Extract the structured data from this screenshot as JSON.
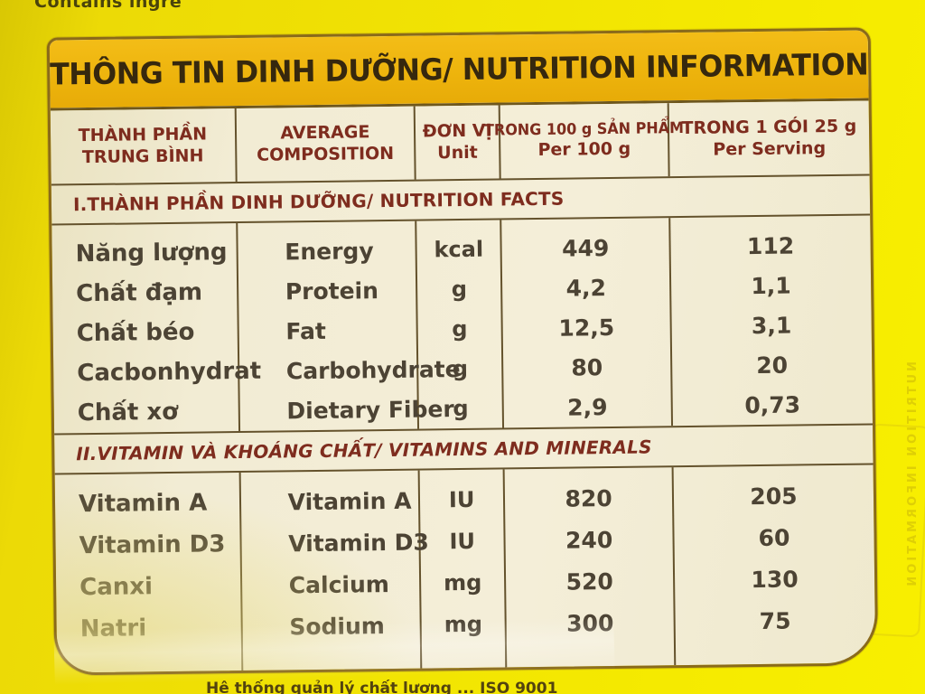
{
  "page": {
    "top_cut_text": "Contains ingre",
    "bottom_cut_text": "Hệ thống quản lý chất lượng ... ISO 9001",
    "ghost_text": "NUTRITION INFORMATION"
  },
  "colors": {
    "package_yellow": "#f2e403",
    "title_band_gold": "#eeb30e",
    "panel_cream": "#f2ecd4",
    "heading_maroon": "#7e2c1e",
    "data_text_brown": "#4c4334",
    "line_brown": "#64522c",
    "title_text_brown": "#36280e"
  },
  "table": {
    "title": "THÔNG TIN DINH DƯỠNG/ NUTRITION INFORMATION",
    "header": {
      "cols": [
        {
          "line1": "THÀNH PHẦN",
          "line2": "TRUNG BÌNH"
        },
        {
          "line1": "AVERAGE",
          "line2": "COMPOSITION"
        },
        {
          "line1": "ĐƠN VỊ",
          "line2": "Unit"
        },
        {
          "line1": "TRONG 100 g SẢN PHẨM",
          "line2": "Per 100 g"
        },
        {
          "line1": "TRONG 1 GÓI 25 g",
          "line2": "Per Serving"
        }
      ]
    },
    "sections": [
      {
        "heading": "I.THÀNH PHẦN DINH DƯỠNG/ NUTRITION FACTS",
        "rows": [
          {
            "vi": "Năng lượng",
            "en": "Energy",
            "unit": "kcal",
            "per100g": "449",
            "perServing": "112"
          },
          {
            "vi": "Chất đạm",
            "en": "Protein",
            "unit": "g",
            "per100g": "4,2",
            "perServing": "1,1"
          },
          {
            "vi": "Chất béo",
            "en": "Fat",
            "unit": "g",
            "per100g": "12,5",
            "perServing": "3,1"
          },
          {
            "vi": "Cacbonhydrat",
            "en": "Carbohydrate",
            "unit": "g",
            "per100g": "80",
            "perServing": "20"
          },
          {
            "vi": "Chất xơ",
            "en": "Dietary Fiber",
            "unit": "g",
            "per100g": "2,9",
            "perServing": "0,73"
          }
        ]
      },
      {
        "heading": "II.VITAMIN VÀ KHOÁNG CHẤT/ VITAMINS AND MINERALS",
        "rows": [
          {
            "vi": "Vitamin A",
            "en": "Vitamin A",
            "unit": "IU",
            "per100g": "820",
            "perServing": "205"
          },
          {
            "vi": "Vitamin D3",
            "en": "Vitamin D3",
            "unit": "IU",
            "per100g": "240",
            "perServing": "60"
          },
          {
            "vi": "Canxi",
            "en": "Calcium",
            "unit": "mg",
            "per100g": "520",
            "perServing": "130"
          },
          {
            "vi": "Natri",
            "en": "Sodium",
            "unit": "mg",
            "per100g": "300",
            "perServing": "75"
          }
        ]
      }
    ]
  }
}
